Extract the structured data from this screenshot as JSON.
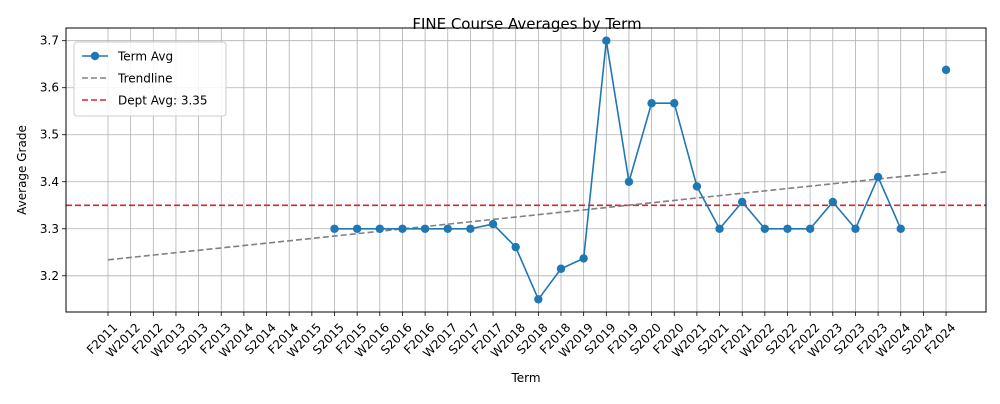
{
  "chart_data": {
    "type": "line",
    "title": "FINE Course Averages by Term",
    "xlabel": "Term",
    "ylabel": "Average Grade",
    "categories": [
      "F2011",
      "W2012",
      "F2012",
      "W2013",
      "S2013",
      "F2013",
      "W2014",
      "S2014",
      "F2014",
      "W2015",
      "S2015",
      "F2015",
      "W2016",
      "S2016",
      "F2016",
      "W2017",
      "S2017",
      "F2017",
      "W2018",
      "S2018",
      "F2018",
      "W2019",
      "S2019",
      "F2019",
      "S2020",
      "F2020",
      "W2021",
      "S2021",
      "F2021",
      "W2022",
      "S2022",
      "F2022",
      "W2023",
      "S2023",
      "F2023",
      "W2024",
      "S2024",
      "F2024"
    ],
    "ylim": [
      3.123,
      3.727
    ],
    "yticks": [
      3.2,
      3.3,
      3.4,
      3.5,
      3.6,
      3.7
    ],
    "ytick_labels": [
      "3.2",
      "3.3",
      "3.4",
      "3.5",
      "3.6",
      "3.7"
    ],
    "grid": true,
    "legend_position": "top-left",
    "series": [
      {
        "name": "Term Avg",
        "color": "#1f77b4",
        "style": "solid-with-markers",
        "values": [
          null,
          null,
          null,
          null,
          null,
          null,
          null,
          null,
          null,
          null,
          3.3,
          3.3,
          3.3,
          3.3,
          3.3,
          3.3,
          3.3,
          3.31,
          3.261,
          3.15,
          3.215,
          3.237,
          3.7,
          3.4,
          3.567,
          3.567,
          3.39,
          3.3,
          3.357,
          3.3,
          3.3,
          3.3,
          3.357,
          3.3,
          3.41,
          3.3,
          null,
          3.638
        ]
      },
      {
        "name": "Trendline",
        "color": "#808080",
        "style": "dashed",
        "start_category": "F2011",
        "end_category": "F2024",
        "start_value": 3.234,
        "end_value": 3.421
      },
      {
        "name": "Dept Avg: 3.35",
        "color": "#d62728",
        "style": "dashed-horizontal",
        "value": 3.35
      }
    ]
  }
}
